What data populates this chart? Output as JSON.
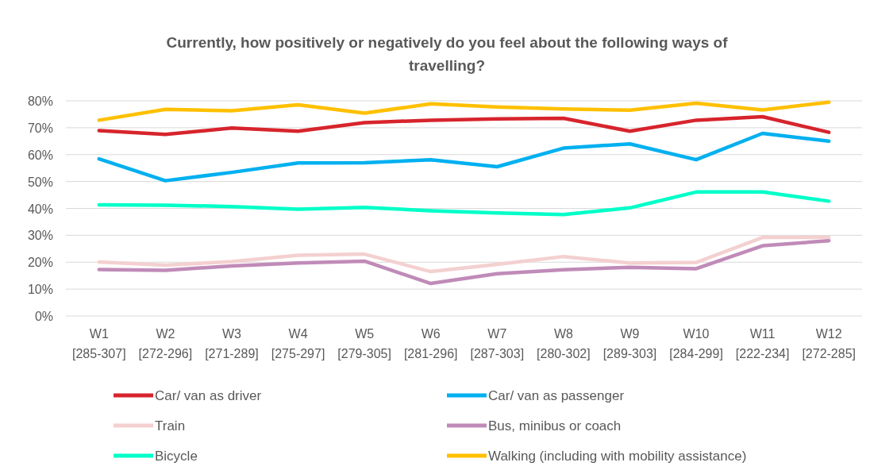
{
  "chart_data": {
    "type": "line",
    "title": "Currently, how positively or negatively do you feel about the following ways of travelling?",
    "categories": [
      "W1\n[285-307]",
      "W2\n[272-296]",
      "W3\n[271-289]",
      "W4\n[275-297]",
      "W5\n[279-305]",
      "W6\n[281-296]",
      "W7\n[287-303]",
      "W8\n[280-302]",
      "W9\n[289-303]",
      "W10\n[284-299]",
      "W11\n[222-234]",
      "W12\n[272-285]"
    ],
    "ylim": [
      0,
      80
    ],
    "yticks": [
      {
        "value": 0,
        "label": "0%"
      },
      {
        "value": 10,
        "label": "10%"
      },
      {
        "value": 20,
        "label": "20%"
      },
      {
        "value": 30,
        "label": "30%"
      },
      {
        "value": 40,
        "label": "40%"
      },
      {
        "value": 50,
        "label": "50%"
      },
      {
        "value": 60,
        "label": "60%"
      },
      {
        "value": 70,
        "label": "70%"
      },
      {
        "value": 80,
        "label": "80%"
      }
    ],
    "grid": "y",
    "legend": "bottom",
    "marker": "none",
    "line_style": "solid",
    "series": [
      {
        "name": "Car/ van as driver",
        "color": "#d7242c",
        "values": [
          68.9,
          67.5,
          69.9,
          68.7,
          71.9,
          72.8,
          73.3,
          73.5,
          68.7,
          72.8,
          74.1,
          68.3
        ]
      },
      {
        "name": "Car/ van as passenger",
        "color": "#00b0f0",
        "values": [
          58.4,
          50.3,
          53.4,
          56.9,
          57,
          58.1,
          55.5,
          62.4,
          64,
          58.1,
          67.9,
          65
        ]
      },
      {
        "name": "Train",
        "color": "#f4d0d0",
        "values": [
          20.1,
          18.9,
          20.2,
          22.6,
          23,
          16.5,
          19.2,
          22.1,
          19.7,
          19.9,
          29.2,
          29.2
        ]
      },
      {
        "name": "Bus, minibus or coach",
        "color": "#c08bb8",
        "values": [
          17.3,
          17,
          18.6,
          19.7,
          20.4,
          12.1,
          15.7,
          17.2,
          18.1,
          17.6,
          26.1,
          28
        ]
      },
      {
        "name": "Bicycle",
        "color": "#00ffc8",
        "values": [
          41.3,
          41.2,
          40.7,
          39.7,
          40.4,
          39.1,
          38.3,
          37.7,
          40.2,
          46.1,
          46.1,
          42.7
        ]
      },
      {
        "name": "Walking (including with mobility assistance)",
        "color": "#ffc000",
        "values": [
          72.8,
          76.8,
          76.3,
          78.5,
          75.4,
          78.9,
          77.7,
          77,
          76.5,
          79.1,
          76.6,
          79.5
        ]
      }
    ]
  }
}
